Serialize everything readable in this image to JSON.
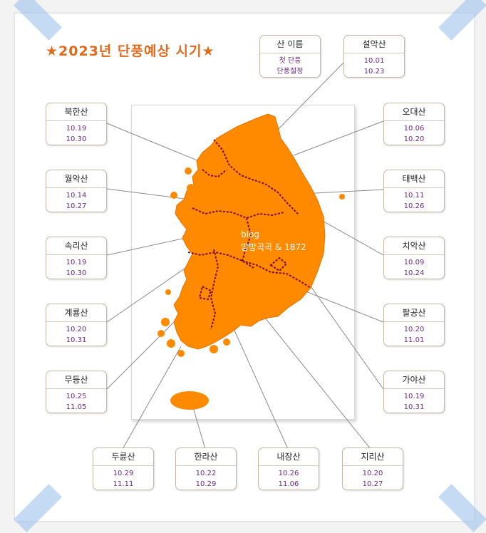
{
  "title": "★2023년 단풍예상 시기★",
  "legend": {
    "name": "산 이름",
    "first": "첫 단풍",
    "peak": "단풍절정"
  },
  "mountains": [
    {
      "name": "설악산",
      "first": "10.01",
      "peak": "10.23"
    },
    {
      "name": "북한산",
      "first": "10.19",
      "peak": "10.30"
    },
    {
      "name": "오대산",
      "first": "10.06",
      "peak": "10.20"
    },
    {
      "name": "월악산",
      "first": "10.14",
      "peak": "10.27"
    },
    {
      "name": "태백산",
      "first": "10.11",
      "peak": "10.26"
    },
    {
      "name": "속리산",
      "first": "10.19",
      "peak": "10.30"
    },
    {
      "name": "치악산",
      "first": "10.09",
      "peak": "10.24"
    },
    {
      "name": "계룡산",
      "first": "10.20",
      "peak": "10.31"
    },
    {
      "name": "팔공산",
      "first": "10.20",
      "peak": "11.01"
    },
    {
      "name": "무등산",
      "first": "10.25",
      "peak": "11.05"
    },
    {
      "name": "가야산",
      "first": "10.19",
      "peak": "10.31"
    },
    {
      "name": "두륜산",
      "first": "10.29",
      "peak": "11.11"
    },
    {
      "name": "한라산",
      "first": "10.22",
      "peak": "10.29"
    },
    {
      "name": "내장산",
      "first": "10.26",
      "peak": "11.06"
    },
    {
      "name": "지리산",
      "first": "10.20",
      "peak": "10.27"
    }
  ],
  "watermark": {
    "line1": "blog",
    "line2": "방방곡곡 & 1872"
  },
  "colors": {
    "map_fill": "#ff8a00",
    "border_line": "#7a0a2a",
    "title": "#e06a1c",
    "date_text": "#6b2a80"
  }
}
